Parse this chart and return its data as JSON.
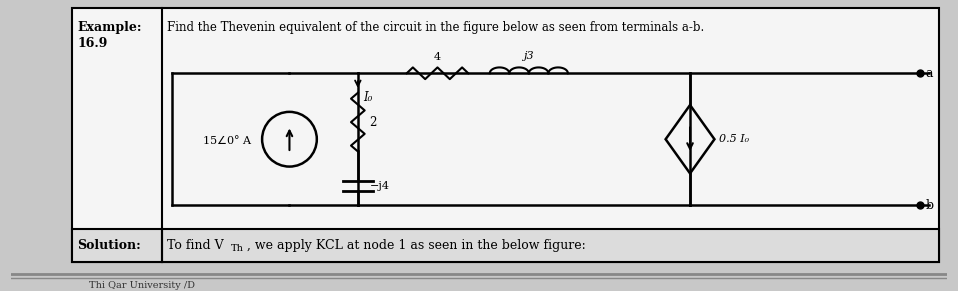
{
  "bg_color": "#c8c8c8",
  "panel_color": "#ffffff",
  "border_color": "#000000",
  "title_label": "Example:",
  "title_number": "16.9",
  "title_text": "Find the Thevenin equivalent of the circuit in the figure below as seen from terminals a-b.",
  "solution_label": "Solution:",
  "solution_text": "To find Vᴛh, we apply KCL at node 1 as seen in the below figure:",
  "fig_width": 9.58,
  "fig_height": 2.91
}
